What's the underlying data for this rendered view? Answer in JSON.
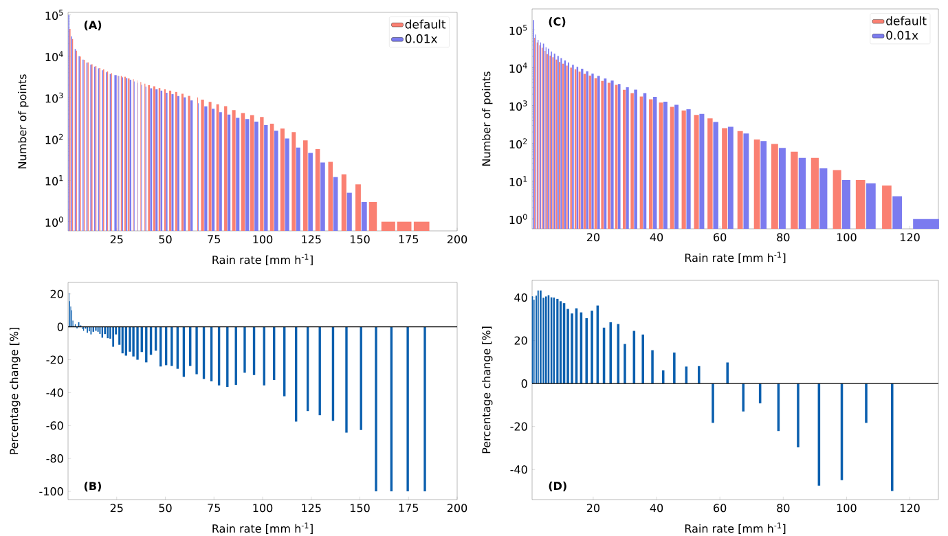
{
  "chart_data": [
    {
      "type": "bar",
      "xlabel": "Rain rate [mm h$^{-1}$]",
      "ylabel": "Number of points",
      "annotations": [
        "(A)"
      ],
      "log": true,
      "legend": "top right",
      "xlim": [
        0,
        200
      ],
      "xticks": [
        25,
        50,
        75,
        100,
        125,
        150,
        175,
        200
      ],
      "ylim": [
        0.6,
        115000
      ],
      "yticks": [
        {
          "value": 1,
          "label": "10$^{0}$"
        },
        {
          "value": 10,
          "label": "10$^{1}$"
        },
        {
          "value": 100,
          "label": "10$^{2}$"
        },
        {
          "value": 1000,
          "label": "10$^{3}$"
        },
        {
          "value": 10000,
          "label": "10$^{4}$"
        },
        {
          "value": 100000,
          "label": "10$^{5}$"
        }
      ],
      "series": [
        {
          "name": "default",
          "color": "#fa8072",
          "x": [
            1.0,
            2.3,
            4.3,
            6.3,
            8.3,
            10.3,
            12.3,
            14.3,
            16.3,
            18.3,
            20.3,
            22.3,
            25.7,
            27.4,
            29.3,
            31.2,
            33.6,
            35.6,
            37.4,
            39.5,
            41.6,
            44.3,
            47.0,
            49.8,
            52.5,
            55.6,
            58.8,
            62.2,
            66.6,
            69.1,
            73.0,
            76.9,
            81.0,
            85.2,
            89.9,
            94.6,
            99.6,
            104.8,
            110.2,
            116.0,
            122.0,
            128.3,
            134.9,
            141.8,
            149.1,
            156.7,
            164.6,
            172.8,
            181.7
          ],
          "values": [
            46000,
            26000,
            13600,
            9800,
            8200,
            7100,
            6400,
            5800,
            5200,
            4800,
            4300,
            3900,
            3400,
            3330,
            3200,
            2900,
            2800,
            2600,
            2400,
            2170,
            2000,
            1880,
            1700,
            1585,
            1475,
            1370,
            1240,
            1100,
            1015,
            890,
            790,
            690,
            620,
            500,
            422,
            376,
            340,
            234,
            180,
            146,
            93,
            57,
            28,
            14,
            8,
            3,
            1,
            1,
            1
          ]
        },
        {
          "name": "0.01x",
          "color": "#7b7bef",
          "x": [
            0.4,
            1.7,
            3.7,
            5.7,
            7.7,
            9.7,
            11.7,
            13.7,
            15.7,
            17.7,
            19.7,
            21.7,
            24.4,
            26.1,
            28.0,
            30.1,
            32.1,
            34.0,
            35.8,
            37.8,
            40.0,
            42.7,
            45.5,
            48.0,
            50.7,
            53.7,
            56.7,
            60.0,
            63.5,
            67.0,
            70.8,
            74.6,
            78.4,
            82.7,
            87.2,
            92.1,
            96.8,
            101.7,
            107.0,
            112.6,
            118.3,
            124.6,
            130.9,
            137.5,
            144.6,
            152.2
          ],
          "values": [
            100000,
            30000,
            15000,
            10000,
            8300,
            7000,
            6300,
            5600,
            5100,
            4600,
            4100,
            3700,
            3500,
            3300,
            3100,
            2950,
            2700,
            2460,
            2270,
            2040,
            1850,
            1680,
            1585,
            1475,
            1310,
            1210,
            1090,
            1015,
            855,
            729,
            613,
            537,
            446,
            390,
            325,
            303,
            262,
            217,
            158,
            103,
            62,
            46,
            27,
            12,
            5,
            3
          ]
        }
      ]
    },
    {
      "type": "bar",
      "xlabel": "Rain rate [mm h$^{-1}$]",
      "ylabel": "Number of points",
      "annotations": [
        "(C)"
      ],
      "log": true,
      "legend": "top right",
      "xlim": [
        0.7,
        129
      ],
      "xticks": [
        20,
        40,
        60,
        80,
        100,
        120
      ],
      "ylim": [
        0.55,
        360000
      ],
      "yticks": [
        {
          "value": 1,
          "label": "10$^{0}$"
        },
        {
          "value": 10,
          "label": "10$^{1}$"
        },
        {
          "value": 100,
          "label": "10$^{2}$"
        },
        {
          "value": 1000,
          "label": "10$^{3}$"
        },
        {
          "value": 10000,
          "label": "10$^{4}$"
        },
        {
          "value": 100000,
          "label": "10$^{5}$"
        }
      ],
      "series": [
        {
          "name": "default",
          "color": "#fa8072",
          "x": [
            1.5,
            2.3,
            3.1,
            3.9,
            4.8,
            5.5,
            6.4,
            7.3,
            8.4,
            9.4,
            10.5,
            11.7,
            13.0,
            14.4,
            15.7,
            17.3,
            19.0,
            20.8,
            22.9,
            25.0,
            27.3,
            29.8,
            32.3,
            35.2,
            38.2,
            41.4,
            44.9,
            48.6,
            52.6,
            56.9,
            61.5,
            66.4,
            71.7,
            77.3,
            83.5,
            90.0,
            97.0,
            104.4,
            112.7
          ],
          "values": [
            62000,
            47000,
            39000,
            34000,
            28000,
            23000,
            21000,
            19000,
            16500,
            14200,
            12800,
            11400,
            10100,
            9100,
            7900,
            6900,
            6200,
            5250,
            4500,
            4000,
            3530,
            2600,
            2140,
            1730,
            1460,
            1200,
            930,
            740,
            565,
            458,
            253,
            212,
            127,
            97,
            60,
            41.5,
            19.6,
            10.7,
            7.7
          ]
        },
        {
          "name": "0.01x",
          "color": "#7b7bef",
          "x": [
            1.1,
            1.8,
            2.6,
            3.4,
            4.3,
            5.1,
            5.9,
            6.8,
            7.8,
            8.9,
            9.9,
            11.1,
            12.2,
            13.6,
            15.0,
            16.5,
            18.1,
            19.8,
            21.7,
            23.8,
            26.0,
            28.2,
            30.8,
            33.4,
            36.3,
            39.5,
            42.8,
            46.3,
            50.1,
            54.3,
            58.7,
            63.4,
            68.3,
            73.8,
            79.7,
            86.0,
            92.7,
            99.9,
            107.7,
            116.0,
            125.1
          ],
          "values": [
            182000,
            76000,
            55000,
            47000,
            43500,
            35000,
            32000,
            27000,
            23700,
            20500,
            18000,
            15600,
            13800,
            12000,
            10600,
            9400,
            8100,
            7000,
            6100,
            5190,
            4570,
            3720,
            3060,
            2640,
            2140,
            1700,
            1270,
            1050,
            800,
            600,
            370,
            275,
            183,
            115,
            76,
            41.5,
            21.9,
            10.7,
            8.8,
            4,
            1
          ]
        }
      ]
    },
    {
      "type": "bar",
      "xlabel": "Rain rate [mm h$^{-1}$]",
      "ylabel": "Percentage change [%]",
      "annotations": [
        "(B)"
      ],
      "xlim": [
        0,
        200
      ],
      "xticks": [
        25,
        50,
        75,
        100,
        125,
        150,
        175,
        200
      ],
      "ylim": [
        -105,
        27
      ],
      "yticks": [
        -100,
        -80,
        -60,
        -40,
        -20,
        0,
        20
      ],
      "ref_lines": [
        {
          "axis": "y",
          "value": 0,
          "color": "#000000"
        }
      ],
      "series": [
        {
          "color": "#0b5fae",
          "x": [
            0.5,
            0.9,
            1.4,
            1.9,
            2.5,
            3.1,
            3.7,
            4.6,
            5.5,
            6.5,
            7.4,
            8.0,
            9.0,
            9.9,
            10.9,
            11.8,
            13.0,
            14.3,
            15.4,
            16.4,
            17.6,
            19.0,
            20.4,
            21.7,
            23.2,
            24.6,
            26.4,
            28.0,
            29.8,
            31.8,
            33.6,
            35.7,
            37.9,
            40.2,
            42.6,
            45.1,
            47.6,
            50.4,
            53.3,
            56.3,
            59.5,
            62.8,
            66.1,
            69.8,
            73.7,
            77.6,
            81.9,
            86.3,
            90.8,
            95.6,
            100.8,
            105.9,
            111.2,
            117.2,
            123.2,
            129.4,
            136.2,
            143.1,
            150.6,
            158.3,
            166.2,
            174.6,
            183.4
          ],
          "values": [
            20.6,
            15.6,
            12.4,
            10.1,
            3.8,
            0.5,
            1.6,
            -0.9,
            2.8,
            0.9,
            -1.4,
            -2.4,
            -1.1,
            -3.6,
            -2.7,
            -4.6,
            -3.0,
            -2.4,
            -3.0,
            -4.3,
            -6.6,
            -4.4,
            -6.9,
            -7.2,
            -12.1,
            -4.6,
            -10.9,
            -16.1,
            -17.5,
            -15.1,
            -18.0,
            -20.0,
            -15.3,
            -21.6,
            -17.0,
            -14.5,
            -24.1,
            -23.3,
            -23.8,
            -25.5,
            -30.4,
            -23.8,
            -28.8,
            -31.7,
            -33.1,
            -35.6,
            -36.5,
            -35.3,
            -27.9,
            -29.3,
            -35.6,
            -32.3,
            -42.2,
            -57.6,
            -51.2,
            -53.7,
            -57.2,
            -64.3,
            -62.7,
            -100,
            -100,
            -100,
            -100
          ]
        }
      ]
    },
    {
      "type": "bar",
      "xlabel": "Rain rate [mm h$^{-1}$]",
      "ylabel": "Percentage change [%]",
      "annotations": [
        "(D)"
      ],
      "xlim": [
        0.7,
        129
      ],
      "xticks": [
        20,
        40,
        60,
        80,
        100,
        120
      ],
      "ylim": [
        -54,
        48
      ],
      "yticks": [
        -40,
        -20,
        0,
        20,
        40
      ],
      "ref_lines": [
        {
          "axis": "y",
          "value": 0,
          "color": "#000000"
        }
      ],
      "series": [
        {
          "color": "#0b5fae",
          "x": [
            0.8,
            1.3,
            2.0,
            2.6,
            3.4,
            4.3,
            5.1,
            5.9,
            6.8,
            7.6,
            8.7,
            9.7,
            10.8,
            12.0,
            13.3,
            14.7,
            16.2,
            17.9,
            19.6,
            21.4,
            23.4,
            25.5,
            27.9,
            30.0,
            32.9,
            35.7,
            38.7,
            42.1,
            45.6,
            49.4,
            53.4,
            57.8,
            62.4,
            67.4,
            72.7,
            78.5,
            84.7,
            91.3,
            98.5,
            106.2,
            114.4
          ],
          "values": [
            40.6,
            39.0,
            40.9,
            43.3,
            43.3,
            39.9,
            40.5,
            41.1,
            40.1,
            40.0,
            39.4,
            38.3,
            37.4,
            34.7,
            32.6,
            35.0,
            33.1,
            30.4,
            33.9,
            36.3,
            26.0,
            28.5,
            27.7,
            18.4,
            24.5,
            22.8,
            15.5,
            6.1,
            14.4,
            7.9,
            8.1,
            -18.3,
            9.8,
            -13.0,
            -9.2,
            -22.1,
            -29.7,
            -47.5,
            -45,
            -18.3,
            -50
          ]
        }
      ]
    }
  ]
}
